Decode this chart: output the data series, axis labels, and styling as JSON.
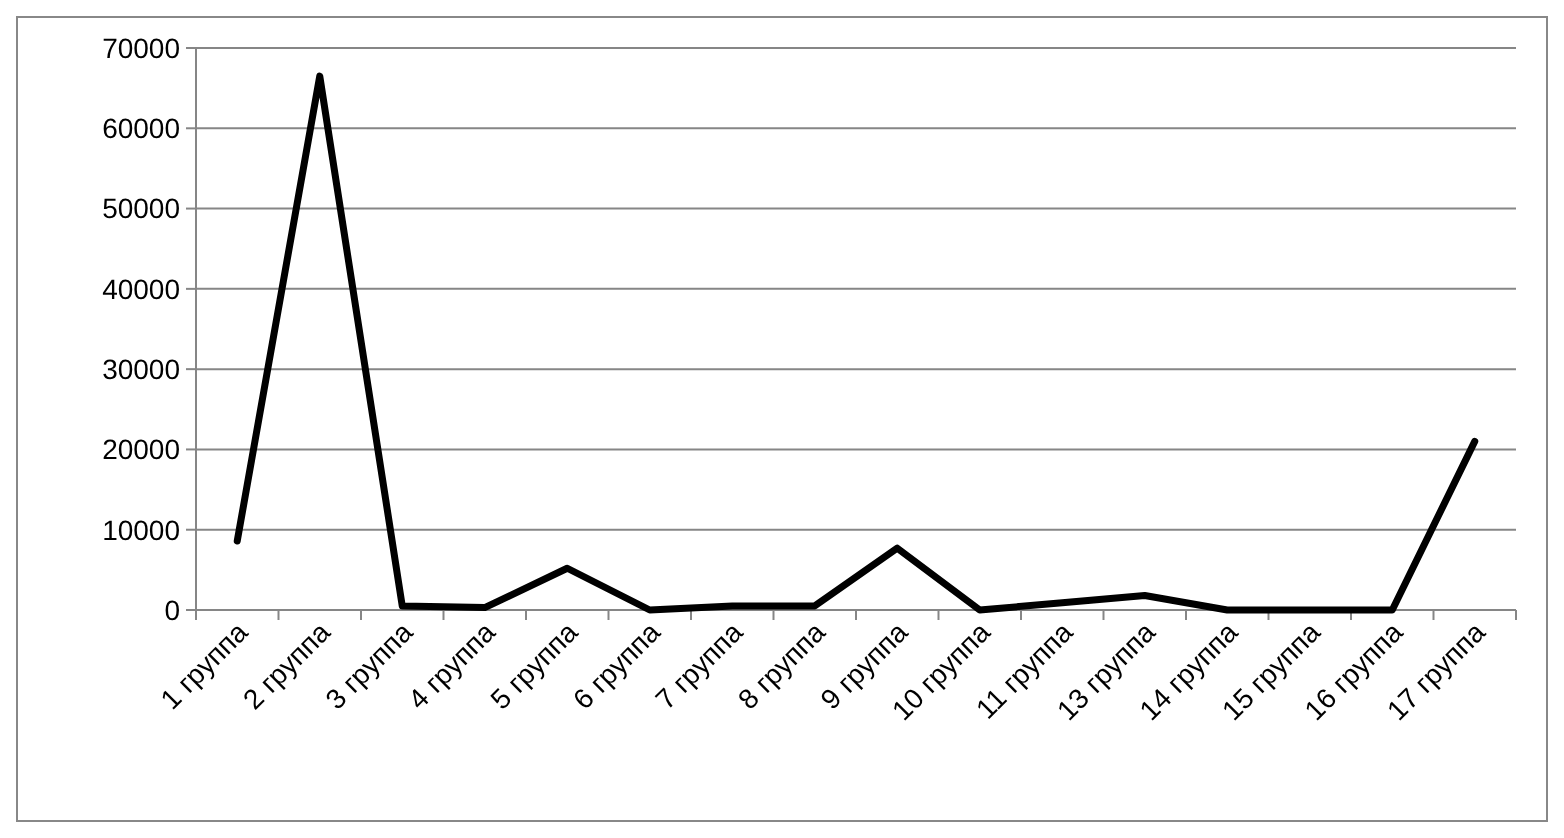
{
  "chart_data": {
    "type": "line",
    "categories": [
      "1 группа",
      "2 группа",
      "3 группа",
      "4 группа",
      "5 группа",
      "6 группа",
      "7 группа",
      "8 группа",
      "9 группа",
      "10 группа",
      "11 группа",
      "13 группа",
      "14 группа",
      "15 группа",
      "16 группа",
      "17 группа"
    ],
    "series": [
      {
        "color": "#000000",
        "values": [
          8600,
          66500,
          500,
          300,
          5200,
          0,
          500,
          500,
          7700,
          0,
          900,
          1800,
          0,
          0,
          0,
          21000
        ]
      }
    ],
    "ylim": [
      0,
      70000
    ],
    "yticks": [
      0,
      10000,
      20000,
      30000,
      40000,
      50000,
      60000,
      70000
    ],
    "grid": "y",
    "marker": "none",
    "line_style": "solid"
  }
}
